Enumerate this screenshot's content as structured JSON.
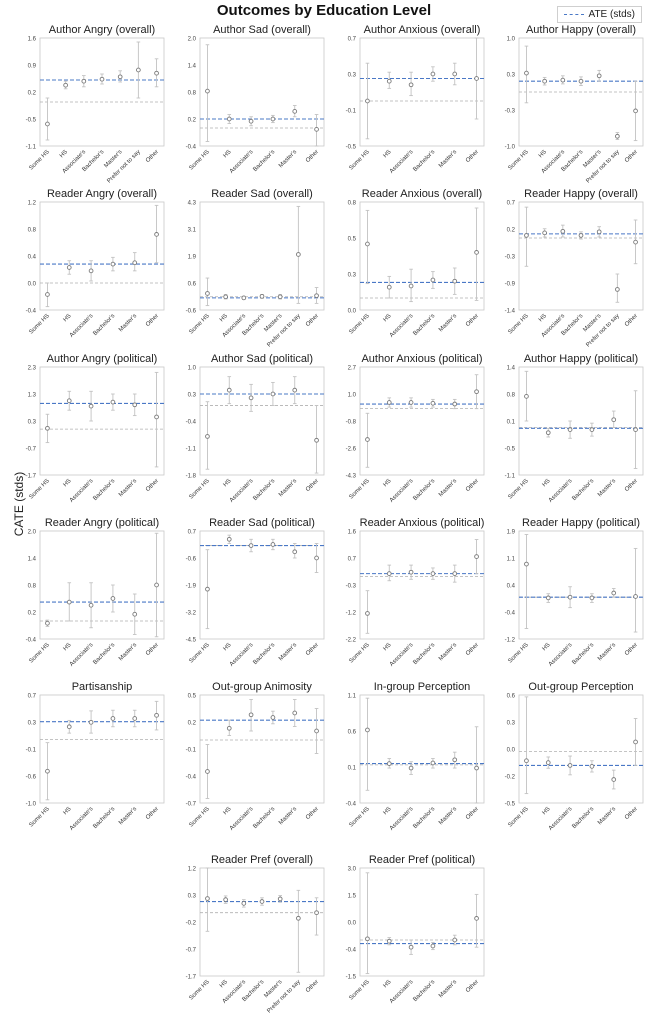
{
  "title": "Outcomes by Education Level",
  "ylabel": "CATE (stds)",
  "legend": {
    "label": "ATE (stds)"
  },
  "colors": {
    "ate": "#4a78c6",
    "zero": "#b0b0b0",
    "ci": "#c2c2c2",
    "point": "#7a7a7a",
    "frame": "#c8c8c8"
  },
  "chart_data": [
    {
      "type": "scatter",
      "title": "Author Angry (overall)",
      "categories": [
        "Some HS",
        "HS",
        "Associate's",
        "Bachelor's",
        "Master's",
        "Prefer not to say",
        "Other"
      ],
      "yticks": [
        "1.6",
        "0.9",
        "0.2",
        "-0.5",
        "-1.1"
      ],
      "ylim": [
        -1.1,
        1.6
      ],
      "ate": 0.55,
      "values": [
        -0.55,
        0.42,
        0.52,
        0.57,
        0.63,
        0.8,
        0.72
      ],
      "ci": [
        [
          -0.95,
          0.1
        ],
        [
          0.33,
          0.52
        ],
        [
          0.38,
          0.66
        ],
        [
          0.45,
          0.7
        ],
        [
          0.5,
          0.78
        ],
        [
          0.1,
          1.5
        ],
        [
          0.38,
          1.08
        ]
      ]
    },
    {
      "type": "scatter",
      "title": "Author Sad (overall)",
      "categories": [
        "Some HS",
        "HS",
        "Associate's",
        "Bachelor's",
        "Master's",
        "Other"
      ],
      "yticks": [
        "2.0",
        "1.4",
        "0.8",
        "0.2",
        "-0.4"
      ],
      "ylim": [
        -0.4,
        2.0
      ],
      "ate": 0.2,
      "values": [
        0.82,
        0.2,
        0.15,
        0.2,
        0.37,
        -0.03
      ],
      "ci": [
        [
          -0.3,
          1.85
        ],
        [
          0.1,
          0.3
        ],
        [
          0.05,
          0.25
        ],
        [
          0.12,
          0.28
        ],
        [
          0.25,
          0.5
        ],
        [
          -0.4,
          0.3
        ]
      ]
    },
    {
      "type": "scatter",
      "title": "Author Anxious (overall)",
      "categories": [
        "Some HS",
        "HS",
        "Associate's",
        "Bachelor's",
        "Master's",
        "Other"
      ],
      "yticks": [
        "0.7",
        "0.3",
        "-0.1",
        "-0.5"
      ],
      "ylim": [
        -0.5,
        0.7
      ],
      "ate": 0.25,
      "values": [
        0.0,
        0.22,
        0.18,
        0.3,
        0.3,
        0.25
      ],
      "ci": [
        [
          -0.42,
          0.42
        ],
        [
          0.14,
          0.32
        ],
        [
          0.06,
          0.32
        ],
        [
          0.22,
          0.38
        ],
        [
          0.18,
          0.42
        ],
        [
          -0.2,
          0.7
        ]
      ]
    },
    {
      "type": "scatter",
      "title": "Author Happy (overall)",
      "categories": [
        "Some HS",
        "HS",
        "Associate's",
        "Bachelor's",
        "Master's",
        "Prefer not to say",
        "Other"
      ],
      "yticks": [
        "1.0",
        "0.3",
        "-0.3",
        "-1.0"
      ],
      "ylim": [
        -1.0,
        1.0
      ],
      "ate": 0.2,
      "values": [
        0.35,
        0.2,
        0.22,
        0.2,
        0.3,
        -0.82,
        -0.35
      ],
      "ci": [
        [
          -0.2,
          0.85
        ],
        [
          0.13,
          0.27
        ],
        [
          0.15,
          0.3
        ],
        [
          0.12,
          0.28
        ],
        [
          0.2,
          0.4
        ],
        [
          -0.88,
          -0.75
        ],
        [
          -0.9,
          0.2
        ]
      ]
    },
    {
      "type": "scatter",
      "title": "Reader Angry (overall)",
      "categories": [
        "Some HS",
        "HS",
        "Associate's",
        "Bachelor's",
        "Master's",
        "Other"
      ],
      "yticks": [
        "1.2",
        "0.8",
        "0.4",
        "0.0",
        "-0.4"
      ],
      "ylim": [
        -0.4,
        1.2
      ],
      "ate": 0.28,
      "values": [
        -0.17,
        0.23,
        0.18,
        0.28,
        0.3,
        0.72
      ],
      "ci": [
        [
          -0.35,
          0.0
        ],
        [
          0.13,
          0.33
        ],
        [
          0.03,
          0.33
        ],
        [
          0.18,
          0.38
        ],
        [
          0.18,
          0.45
        ],
        [
          0.3,
          1.15
        ]
      ]
    },
    {
      "type": "scatter",
      "title": "Reader Sad (overall)",
      "categories": [
        "Some HS",
        "HS",
        "Associate's",
        "Bachelor's",
        "Master's",
        "Prefer not to say",
        "Other"
      ],
      "yticks": [
        "4.3",
        "3.1",
        "1.9",
        "0.6",
        "-0.6"
      ],
      "ylim": [
        -0.6,
        4.3
      ],
      "ate": -0.05,
      "values": [
        0.15,
        0.0,
        -0.05,
        0.02,
        0.0,
        1.92,
        0.05
      ],
      "ci": [
        [
          -0.4,
          0.85
        ],
        [
          -0.1,
          0.1
        ],
        [
          -0.12,
          0.02
        ],
        [
          -0.07,
          0.1
        ],
        [
          -0.1,
          0.1
        ],
        [
          -0.3,
          4.1
        ],
        [
          -0.3,
          0.42
        ]
      ]
    },
    {
      "type": "scatter",
      "title": "Reader Anxious (overall)",
      "categories": [
        "Some HS",
        "HS",
        "Associate's",
        "Bachelor's",
        "Master's",
        "Other"
      ],
      "yticks": [
        "0.8",
        "0.5",
        "0.3",
        "0.0"
      ],
      "ylim": [
        -0.1,
        0.8
      ],
      "ate": 0.13,
      "values": [
        0.45,
        0.09,
        0.1,
        0.15,
        0.14,
        0.38
      ],
      "ci": [
        [
          0.12,
          0.73
        ],
        [
          0.0,
          0.18
        ],
        [
          -0.03,
          0.24
        ],
        [
          0.08,
          0.22
        ],
        [
          0.03,
          0.25
        ],
        [
          -0.02,
          0.75
        ]
      ]
    },
    {
      "type": "scatter",
      "title": "Reader Happy (overall)",
      "categories": [
        "Some HS",
        "HS",
        "Associate's",
        "Bachelor's",
        "Master's",
        "Prefer not to say",
        "Other"
      ],
      "yticks": [
        "0.7",
        "0.2",
        "-0.3",
        "-0.9",
        "-1.4"
      ],
      "ylim": [
        -1.4,
        0.7
      ],
      "ate": 0.08,
      "values": [
        0.05,
        0.1,
        0.13,
        0.05,
        0.12,
        -1.0,
        -0.08
      ],
      "ci": [
        [
          -0.55,
          0.6
        ],
        [
          0.02,
          0.18
        ],
        [
          0.02,
          0.25
        ],
        [
          -0.02,
          0.12
        ],
        [
          0.02,
          0.22
        ],
        [
          -1.25,
          -0.7
        ],
        [
          -0.5,
          0.35
        ]
      ]
    },
    {
      "type": "scatter",
      "title": "Author Angry (political)",
      "categories": [
        "Some HS",
        "HS",
        "Associate's",
        "Bachelor's",
        "Master's",
        "Other"
      ],
      "yticks": [
        "2.3",
        "1.3",
        "0.3",
        "-0.7",
        "-1.7"
      ],
      "ylim": [
        -1.7,
        2.3
      ],
      "ate": 0.95,
      "values": [
        0.03,
        1.05,
        0.85,
        1.0,
        0.9,
        0.45
      ],
      "ci": [
        [
          -0.5,
          0.55
        ],
        [
          0.7,
          1.4
        ],
        [
          0.3,
          1.4
        ],
        [
          0.7,
          1.3
        ],
        [
          0.5,
          1.3
        ],
        [
          -1.4,
          2.1
        ]
      ]
    },
    {
      "type": "scatter",
      "title": "Author Sad (political)",
      "categories": [
        "Some HS",
        "HS",
        "Associate's",
        "Bachelor's",
        "Master's",
        "Other"
      ],
      "yticks": [
        "1.0",
        "0.3",
        "-0.4",
        "-1.1",
        "-1.8"
      ],
      "ylim": [
        -1.8,
        1.0
      ],
      "ate": 0.3,
      "values": [
        -0.8,
        0.4,
        0.2,
        0.3,
        0.4,
        -0.9
      ],
      "ci": [
        [
          -1.65,
          0.1
        ],
        [
          0.05,
          0.75
        ],
        [
          -0.15,
          0.55
        ],
        [
          0.0,
          0.6
        ],
        [
          0.05,
          0.75
        ],
        [
          -1.75,
          0.0
        ]
      ]
    },
    {
      "type": "scatter",
      "title": "Author Anxious (political)",
      "categories": [
        "Some HS",
        "HS",
        "Associate's",
        "Bachelor's",
        "Master's",
        "Other"
      ],
      "yticks": [
        "2.7",
        "1.0",
        "-0.8",
        "-2.6",
        "-4.3"
      ],
      "ylim": [
        -4.3,
        2.7
      ],
      "ate": 0.3,
      "values": [
        -2.0,
        0.4,
        0.4,
        0.35,
        0.3,
        1.1
      ],
      "ci": [
        [
          -3.8,
          -0.3
        ],
        [
          0.1,
          0.7
        ],
        [
          0.1,
          0.7
        ],
        [
          0.1,
          0.6
        ],
        [
          0.0,
          0.6
        ],
        [
          0.0,
          2.2
        ]
      ]
    },
    {
      "type": "scatter",
      "title": "Author Happy (political)",
      "categories": [
        "Some HS",
        "HS",
        "Associate's",
        "Bachelor's",
        "Master's",
        "Other"
      ],
      "yticks": [
        "1.4",
        "0.8",
        "0.1",
        "-0.5",
        "-1.1"
      ],
      "ylim": [
        -1.1,
        1.4
      ],
      "ate": -0.02,
      "values": [
        0.72,
        -0.12,
        -0.05,
        -0.05,
        0.18,
        -0.05
      ],
      "ci": [
        [
          0.15,
          1.3
        ],
        [
          -0.22,
          -0.02
        ],
        [
          -0.25,
          0.15
        ],
        [
          -0.2,
          0.1
        ],
        [
          0.0,
          0.38
        ],
        [
          -0.95,
          0.85
        ]
      ]
    },
    {
      "type": "scatter",
      "title": "Reader Angry (political)",
      "categories": [
        "Some HS",
        "HS",
        "Associate's",
        "Bachelor's",
        "Master's",
        "Other"
      ],
      "yticks": [
        "2.0",
        "1.4",
        "0.8",
        "0.2",
        "-0.4"
      ],
      "ylim": [
        -0.4,
        2.0
      ],
      "ate": 0.42,
      "values": [
        -0.05,
        0.42,
        0.35,
        0.5,
        0.15,
        0.8
      ],
      "ci": [
        [
          -0.12,
          0.02
        ],
        [
          0.0,
          0.85
        ],
        [
          -0.15,
          0.85
        ],
        [
          0.2,
          0.8
        ],
        [
          -0.3,
          0.6
        ],
        [
          -0.35,
          1.95
        ]
      ]
    },
    {
      "type": "scatter",
      "title": "Reader Sad (political)",
      "categories": [
        "Some HS",
        "HS",
        "Associate's",
        "Bachelor's",
        "Master's",
        "Other"
      ],
      "yticks": [
        "0.7",
        "-0.6",
        "-1.9",
        "-3.2",
        "-4.5"
      ],
      "ylim": [
        -4.5,
        0.7
      ],
      "ate": 0.0,
      "values": [
        -2.1,
        0.3,
        0.0,
        0.05,
        -0.3,
        -0.6
      ],
      "ci": [
        [
          -4.0,
          -0.2
        ],
        [
          0.1,
          0.5
        ],
        [
          -0.3,
          0.3
        ],
        [
          -0.2,
          0.3
        ],
        [
          -0.6,
          0.1
        ],
        [
          -1.3,
          0.1
        ]
      ]
    },
    {
      "type": "scatter",
      "title": "Reader Anxious (political)",
      "categories": [
        "Some HS",
        "HS",
        "Associate's",
        "Bachelor's",
        "Master's",
        "Other"
      ],
      "yticks": [
        "1.6",
        "0.7",
        "-0.3",
        "-1.2",
        "-2.2"
      ],
      "ylim": [
        -2.2,
        1.6
      ],
      "ate": 0.1,
      "values": [
        -1.3,
        0.1,
        0.15,
        0.1,
        0.1,
        0.7
      ],
      "ci": [
        [
          -2.0,
          -0.5
        ],
        [
          -0.15,
          0.4
        ],
        [
          -0.1,
          0.4
        ],
        [
          -0.1,
          0.3
        ],
        [
          -0.2,
          0.4
        ],
        [
          0.1,
          1.3
        ]
      ]
    },
    {
      "type": "scatter",
      "title": "Reader Happy (political)",
      "categories": [
        "Some HS",
        "HS",
        "Associate's",
        "Bachelor's",
        "Master's",
        "Other"
      ],
      "yticks": [
        "1.9",
        "1.1",
        "0.4",
        "-0.4",
        "-1.2"
      ],
      "ylim": [
        -1.2,
        1.9
      ],
      "ate": 0.0,
      "values": [
        0.95,
        -0.02,
        0.0,
        -0.02,
        0.12,
        0.02
      ],
      "ci": [
        [
          -0.9,
          1.8
        ],
        [
          -0.15,
          0.1
        ],
        [
          -0.3,
          0.3
        ],
        [
          -0.15,
          0.1
        ],
        [
          0.0,
          0.25
        ],
        [
          -1.0,
          1.4
        ]
      ]
    },
    {
      "type": "scatter",
      "title": "Partisanship",
      "categories": [
        "Some HS",
        "HS",
        "Associate's",
        "Bachelor's",
        "Master's",
        "Other"
      ],
      "yticks": [
        "0.7",
        "0.3",
        "-0.1",
        "-0.6",
        "-1.0"
      ],
      "ylim": [
        -1.0,
        0.7
      ],
      "ate": 0.28,
      "values": [
        -0.5,
        0.2,
        0.27,
        0.33,
        0.33,
        0.38
      ],
      "ci": [
        [
          -0.95,
          -0.05
        ],
        [
          0.1,
          0.3
        ],
        [
          0.1,
          0.45
        ],
        [
          0.2,
          0.46
        ],
        [
          0.2,
          0.46
        ],
        [
          0.15,
          0.6
        ]
      ]
    },
    {
      "type": "scatter",
      "title": "Out-group Animosity",
      "categories": [
        "Some HS",
        "HS",
        "Associate's",
        "Bachelor's",
        "Master's",
        "Other"
      ],
      "yticks": [
        "0.5",
        "0.2",
        "-0.1",
        "-0.4",
        "-0.7"
      ],
      "ylim": [
        -0.7,
        0.5
      ],
      "ate": 0.22,
      "values": [
        -0.35,
        0.13,
        0.28,
        0.25,
        0.3,
        0.1
      ],
      "ci": [
        [
          -0.65,
          -0.05
        ],
        [
          0.05,
          0.22
        ],
        [
          0.1,
          0.45
        ],
        [
          0.18,
          0.32
        ],
        [
          0.15,
          0.45
        ],
        [
          -0.15,
          0.35
        ]
      ]
    },
    {
      "type": "scatter",
      "title": "In-group Perception",
      "categories": [
        "Some HS",
        "HS",
        "Associate's",
        "Bachelor's",
        "Master's",
        "Other"
      ],
      "yticks": [
        "1.1",
        "0.6",
        "0.1",
        "-0.4"
      ],
      "ylim": [
        -0.6,
        1.1
      ],
      "ate": 0.02,
      "values": [
        0.55,
        0.02,
        -0.05,
        0.03,
        0.08,
        -0.05
      ],
      "ci": [
        [
          -0.4,
          1.05
        ],
        [
          -0.05,
          0.1
        ],
        [
          -0.15,
          0.05
        ],
        [
          -0.05,
          0.1
        ],
        [
          -0.05,
          0.2
        ],
        [
          -0.6,
          0.6
        ]
      ]
    },
    {
      "type": "scatter",
      "title": "Out-group Perception",
      "categories": [
        "Some HS",
        "HS",
        "Associate's",
        "Bachelor's",
        "Master's",
        "Other"
      ],
      "yticks": [
        "0.6",
        "0.3",
        "0.0",
        "-0.2",
        "-0.5"
      ],
      "ylim": [
        -0.55,
        0.6
      ],
      "ate": -0.15,
      "values": [
        -0.1,
        -0.12,
        -0.15,
        -0.16,
        -0.3,
        0.1
      ],
      "ci": [
        [
          -0.45,
          0.58
        ],
        [
          -0.18,
          -0.06
        ],
        [
          -0.25,
          -0.05
        ],
        [
          -0.22,
          -0.1
        ],
        [
          -0.4,
          -0.2
        ],
        [
          -0.15,
          0.35
        ]
      ]
    },
    {
      "type": "scatter",
      "title": "Reader Pref (overall)",
      "categories": [
        "Some HS",
        "HS",
        "Associate's",
        "Bachelor's",
        "Master's",
        "Prefer not to say",
        "Other"
      ],
      "yticks": [
        "1.2",
        "0.3",
        "-0.2",
        "-0.7",
        "-1.7"
      ],
      "ylim": [
        -1.7,
        1.2
      ],
      "ate": 0.3,
      "values": [
        0.38,
        0.35,
        0.25,
        0.3,
        0.37,
        -0.15,
        0.0
      ],
      "ci": [
        [
          -0.5,
          1.2
        ],
        [
          0.25,
          0.45
        ],
        [
          0.15,
          0.35
        ],
        [
          0.2,
          0.4
        ],
        [
          0.28,
          0.46
        ],
        [
          -1.6,
          0.6
        ],
        [
          -0.6,
          0.4
        ]
      ]
    },
    {
      "type": "scatter",
      "title": "Reader Pref (political)",
      "categories": [
        "Some HS",
        "HS",
        "Associate's",
        "Bachelor's",
        "Master's",
        "Other"
      ],
      "yticks": [
        "3.0",
        "1.5",
        "0.0",
        "-0.4",
        "-1.5"
      ],
      "ylim": [
        -1.5,
        3.0
      ],
      "ate": -0.15,
      "values": [
        0.05,
        -0.05,
        -0.3,
        -0.25,
        0.0,
        0.9
      ],
      "ci": [
        [
          -1.4,
          2.8
        ],
        [
          -0.2,
          0.1
        ],
        [
          -0.6,
          0.0
        ],
        [
          -0.4,
          -0.1
        ],
        [
          -0.2,
          0.2
        ],
        [
          -0.3,
          1.9
        ]
      ]
    }
  ]
}
